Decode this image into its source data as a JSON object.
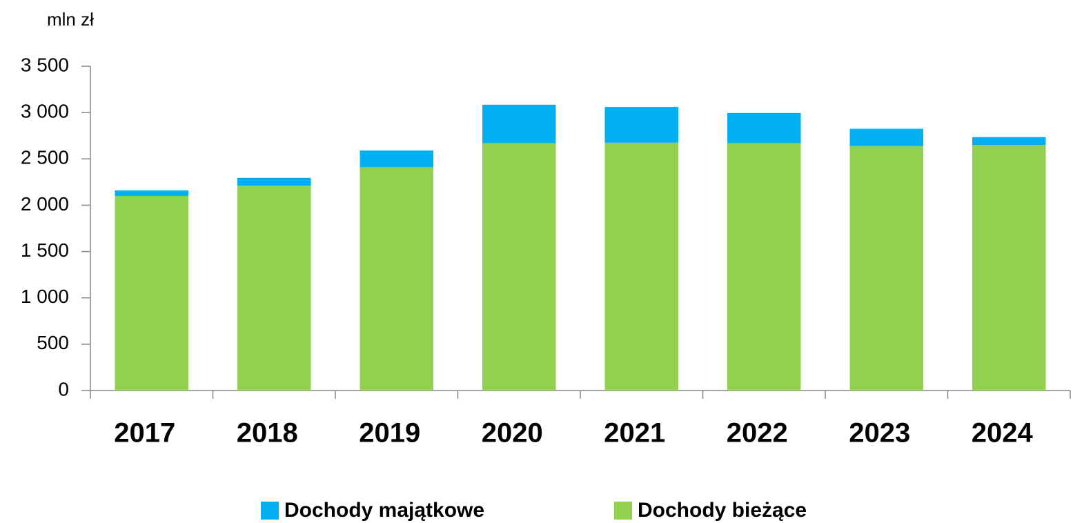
{
  "chart_data": {
    "type": "stacked_bar",
    "y_label": "mln zł",
    "categories": [
      "2017",
      "2018",
      "2019",
      "2020",
      "2021",
      "2022",
      "2023",
      "2024"
    ],
    "series": [
      {
        "name": "Dochody majątkowe",
        "color": "#00b0f0",
        "values": [
          60,
          85,
          180,
          415,
          385,
          325,
          185,
          85
        ]
      },
      {
        "name": "Dochody bieżące",
        "color": "#92d050",
        "values": [
          2100,
          2210,
          2410,
          2670,
          2675,
          2670,
          2640,
          2650
        ]
      }
    ],
    "ylim": [
      0,
      3500
    ],
    "yticks": [
      0,
      500,
      {
        "value": 1000,
        "label": "1 000"
      },
      {
        "value": 1500,
        "label": "1 500"
      },
      {
        "value": 2000,
        "label": "2 000"
      },
      {
        "value": 2500,
        "label": "2 500"
      },
      {
        "value": 3000,
        "label": "3 000"
      },
      {
        "value": 3500,
        "label": "3 500"
      }
    ],
    "grid": false,
    "legend": "bottom"
  }
}
